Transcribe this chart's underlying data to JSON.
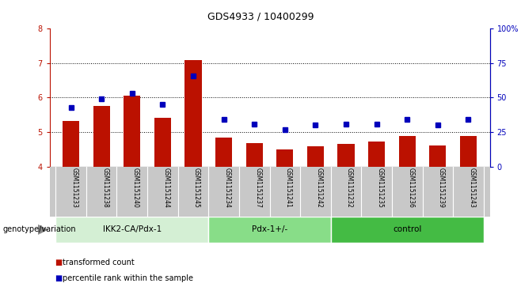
{
  "title": "GDS4933 / 10400299",
  "samples": [
    "GSM1151233",
    "GSM1151238",
    "GSM1151240",
    "GSM1151244",
    "GSM1151245",
    "GSM1151234",
    "GSM1151237",
    "GSM1151241",
    "GSM1151242",
    "GSM1151232",
    "GSM1151235",
    "GSM1151236",
    "GSM1151239",
    "GSM1151243"
  ],
  "red_values": [
    5.32,
    5.75,
    6.05,
    5.42,
    7.08,
    4.85,
    4.68,
    4.5,
    4.58,
    4.65,
    4.72,
    4.88,
    4.6,
    4.88
  ],
  "blue_values": [
    43.0,
    49.0,
    53.0,
    45.0,
    66.0,
    34.0,
    31.0,
    26.5,
    30.0,
    31.0,
    31.0,
    34.0,
    30.0,
    34.0
  ],
  "ylim_left": [
    4,
    8
  ],
  "ylim_right": [
    0,
    100
  ],
  "yticks_left": [
    4,
    5,
    6,
    7,
    8
  ],
  "yticks_right": [
    0,
    25,
    50,
    75,
    100
  ],
  "ytick_labels_right": [
    "0",
    "25",
    "50",
    "75",
    "100%"
  ],
  "bar_color": "#bb1100",
  "dot_color": "#0000bb",
  "groups": [
    {
      "label": "IKK2-CA/Pdx-1",
      "start": 0,
      "end": 4,
      "color": "#d8f0d8"
    },
    {
      "label": "Pdx-1+/-",
      "start": 5,
      "end": 8,
      "color": "#88dd88"
    },
    {
      "label": "control",
      "start": 9,
      "end": 13,
      "color": "#44bb44"
    }
  ],
  "xlabel_group": "genotype/variation",
  "legend_items": [
    {
      "label": "transformed count",
      "color": "#bb1100",
      "marker": "s"
    },
    {
      "label": "percentile rank within the sample",
      "color": "#0000bb",
      "marker": "s"
    }
  ],
  "bar_width": 0.55,
  "background_color": "#ffffff",
  "tick_area_color": "#c8c8c8",
  "group_border_color": "#ffffff"
}
